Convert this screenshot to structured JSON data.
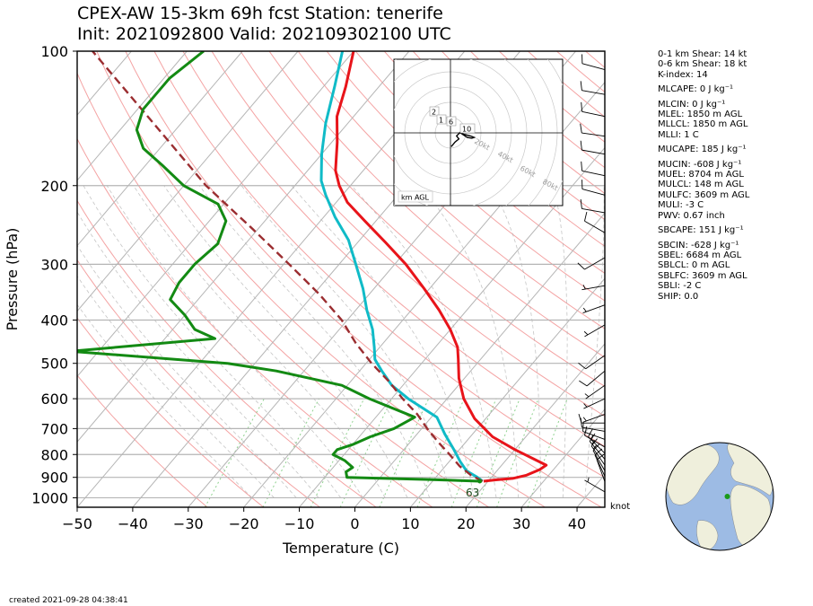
{
  "title_line1": "CPEX-AW 15-3km  69h fcst  Station: tenerife",
  "title_line2": "Init: 2021092800  Valid: 202109302100 UTC",
  "created": "created 2021-09-28 04:38:41",
  "wind_unit": "knot",
  "indices": [
    "0-1 km Shear: 14 kt",
    "0-6 km Shear: 18 kt",
    "K-index: 14",
    "MLCAPE: 0 J kg⁻¹",
    "MLCIN: 0 J kg⁻¹",
    "MLEL: 1850 m AGL",
    "MLLCL: 1850 m AGL",
    "MLLI: 1 C",
    "MUCAPE: 185 J kg⁻¹",
    "MUCIN: -608 J kg⁻¹",
    "MUEL: 8704 m AGL",
    "MULCL: 148 m AGL",
    "MULFC: 3609 m AGL",
    "MULI: -3 C",
    "PWV: 0.67 inch",
    "SBCAPE: 151 J kg⁻¹",
    "SBCIN: -628 J kg⁻¹",
    "SBEL: 6684 m AGL",
    "SBLCL: 0 m AGL",
    "SBLFC: 3609 m AGL",
    "SBLI: -2 C",
    "SHIP: 0.0"
  ],
  "chart_data": {
    "type": "line",
    "subtype": "skew-t log-p",
    "xlabel": "Temperature (C)",
    "ylabel": "Pressure (hPa)",
    "xlim": [
      -50,
      45
    ],
    "ylim": [
      1050,
      100
    ],
    "yscale": "log",
    "x_ticks": [
      -50,
      -40,
      -30,
      -20,
      -10,
      0,
      10,
      20,
      30,
      40
    ],
    "y_ticks": [
      100,
      200,
      300,
      400,
      500,
      600,
      700,
      800,
      900,
      1000
    ],
    "series": [
      {
        "role": "temperature",
        "color": "#e8141a",
        "points": [
          [
            19.2,
            918
          ],
          [
            21,
            912
          ],
          [
            24,
            905
          ],
          [
            26,
            890
          ],
          [
            27.5,
            865
          ],
          [
            28,
            845
          ],
          [
            25,
            820
          ],
          [
            20,
            780
          ],
          [
            14,
            730
          ],
          [
            8,
            665
          ],
          [
            3,
            600
          ],
          [
            -1,
            540
          ],
          [
            -4,
            490
          ],
          [
            -6,
            460
          ],
          [
            -10,
            420
          ],
          [
            -15,
            380
          ],
          [
            -21,
            340
          ],
          [
            -28,
            300
          ],
          [
            -35,
            268
          ],
          [
            -42,
            240
          ],
          [
            -48,
            218
          ],
          [
            -52,
            200
          ],
          [
            -55,
            185
          ],
          [
            -59,
            160
          ],
          [
            -63,
            140
          ],
          [
            -66,
            120
          ],
          [
            -70,
            100
          ]
        ]
      },
      {
        "role": "dewpoint",
        "color": "#10bbc7",
        "points": [
          [
            19,
            918
          ],
          [
            17.5,
            900
          ],
          [
            14.5,
            870
          ],
          [
            12,
            830
          ],
          [
            9,
            780
          ],
          [
            5,
            720
          ],
          [
            1,
            660
          ],
          [
            -7,
            600
          ],
          [
            -12,
            560
          ],
          [
            -16,
            520
          ],
          [
            -19,
            490
          ],
          [
            -21,
            460
          ],
          [
            -24,
            420
          ],
          [
            -28,
            380
          ],
          [
            -32,
            340
          ],
          [
            -37,
            300
          ],
          [
            -42,
            265
          ],
          [
            -48,
            235
          ],
          [
            -53,
            210
          ],
          [
            -56,
            195
          ],
          [
            -60,
            170
          ],
          [
            -64,
            145
          ],
          [
            -68,
            120
          ],
          [
            -72,
            100
          ]
        ]
      },
      {
        "role": "parcel",
        "color": "#9b2d30",
        "dashed": true,
        "points": [
          [
            19,
            918
          ],
          [
            16,
            890
          ],
          [
            12.6,
            850
          ],
          [
            9,
            800
          ],
          [
            5,
            750
          ],
          [
            1,
            700
          ],
          [
            -3,
            650
          ],
          [
            -8,
            600
          ],
          [
            -13,
            550
          ],
          [
            -19,
            500
          ],
          [
            -25,
            450
          ],
          [
            -31,
            400
          ],
          [
            -39,
            350
          ],
          [
            -49,
            300
          ],
          [
            -61,
            250
          ],
          [
            -76,
            200
          ],
          [
            -93,
            150
          ],
          [
            -117,
            100
          ]
        ]
      },
      {
        "role": "green",
        "color": "#138a13",
        "points": [
          [
            18.5,
            918
          ],
          [
            9,
            910
          ],
          [
            -6,
            900
          ],
          [
            -7,
            875
          ],
          [
            -6.5,
            855
          ],
          [
            -9,
            825
          ],
          [
            -12,
            800
          ],
          [
            -12,
            780
          ],
          [
            -10,
            760
          ],
          [
            -8,
            730
          ],
          [
            -5,
            700
          ],
          [
            -3,
            660
          ],
          [
            -14,
            600
          ],
          [
            -21,
            560
          ],
          [
            -35,
            520
          ],
          [
            -45,
            500
          ],
          [
            -75,
            470
          ],
          [
            -51,
            440
          ],
          [
            -56,
            420
          ],
          [
            -60,
            390
          ],
          [
            -65,
            360
          ],
          [
            -66,
            330
          ],
          [
            -66,
            300
          ],
          [
            -65,
            270
          ],
          [
            -67,
            240
          ],
          [
            -71,
            220
          ],
          [
            -80,
            200
          ],
          [
            -87,
            180
          ],
          [
            -93,
            165
          ],
          [
            -97,
            150
          ],
          [
            -99,
            135
          ],
          [
            -99,
            115
          ],
          [
            -97,
            100
          ]
        ]
      }
    ],
    "surface_label": "63",
    "surface_label_pressure": 975,
    "surface_label_temperature": 19,
    "winds": [
      {
        "p": 110,
        "spd": 10,
        "dir": 285
      },
      {
        "p": 125,
        "spd": 10,
        "dir": 280
      },
      {
        "p": 140,
        "spd": 10,
        "dir": 282
      },
      {
        "p": 155,
        "spd": 10,
        "dir": 278
      },
      {
        "p": 170,
        "spd": 10,
        "dir": 280
      },
      {
        "p": 190,
        "spd": 10,
        "dir": 282
      },
      {
        "p": 210,
        "spd": 10,
        "dir": 285
      },
      {
        "p": 230,
        "spd": 10,
        "dir": 280
      },
      {
        "p": 255,
        "spd": 10,
        "dir": 300
      },
      {
        "p": 290,
        "spd": 10,
        "dir": 240
      },
      {
        "p": 335,
        "spd": 5,
        "dir": 260
      },
      {
        "p": 370,
        "spd": 5,
        "dir": 250
      },
      {
        "p": 410,
        "spd": 5,
        "dir": 240
      },
      {
        "p": 480,
        "spd": 10,
        "dir": 235
      },
      {
        "p": 520,
        "spd": 10,
        "dir": 230
      },
      {
        "p": 560,
        "spd": 5,
        "dir": 235
      },
      {
        "p": 600,
        "spd": 5,
        "dir": 245
      },
      {
        "p": 650,
        "spd": 5,
        "dir": 250
      },
      {
        "p": 680,
        "spd": 10,
        "dir": 270
      },
      {
        "p": 710,
        "spd": 10,
        "dir": 280
      },
      {
        "p": 740,
        "spd": 10,
        "dir": 290
      },
      {
        "p": 770,
        "spd": 10,
        "dir": 300
      },
      {
        "p": 795,
        "spd": 15,
        "dir": 315
      },
      {
        "p": 820,
        "spd": 15,
        "dir": 320
      },
      {
        "p": 845,
        "spd": 15,
        "dir": 325
      },
      {
        "p": 870,
        "spd": 10,
        "dir": 330
      },
      {
        "p": 895,
        "spd": 10,
        "dir": 335
      },
      {
        "p": 920,
        "spd": 10,
        "dir": 340
      },
      {
        "p": 970,
        "spd": 5,
        "dir": 300
      }
    ],
    "hodograph": {
      "ring_labels": [
        "20kt",
        "40kt",
        "60kt",
        "80kt"
      ],
      "height_labels": [
        "2",
        "1",
        "6",
        "10"
      ],
      "legend_label": "km AGL",
      "trace": [
        [
          0.5,
          -9
        ],
        [
          3,
          -6
        ],
        [
          5.5,
          -4
        ],
        [
          4,
          -2
        ],
        [
          6,
          0
        ],
        [
          9,
          -1
        ],
        [
          13,
          -2
        ],
        [
          15.5,
          -3
        ],
        [
          14,
          -3.5
        ],
        [
          11,
          -3
        ],
        [
          8,
          -1
        ],
        [
          6,
          0.5
        ]
      ]
    },
    "globe_marker": {
      "lon": -16.5,
      "lat": 28.5
    }
  }
}
